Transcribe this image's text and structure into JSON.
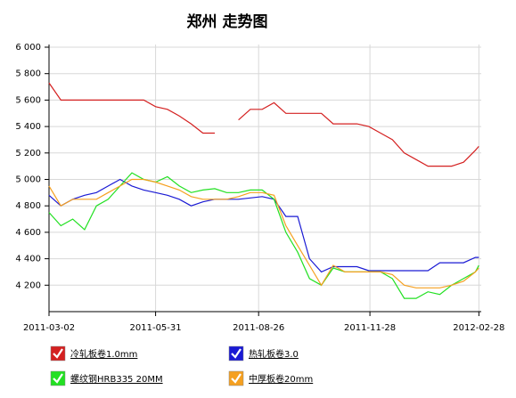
{
  "chart_data": {
    "type": "line",
    "title": "郑州 走势图",
    "x": [
      "2011-03-02",
      "2011-03-12",
      "2011-03-22",
      "2011-04-01",
      "2011-04-11",
      "2011-04-21",
      "2011-05-01",
      "2011-05-11",
      "2011-05-21",
      "2011-05-31",
      "2011-06-10",
      "2011-06-20",
      "2011-06-30",
      "2011-07-10",
      "2011-07-20",
      "2011-07-30",
      "2011-08-09",
      "2011-08-19",
      "2011-08-29",
      "2011-09-08",
      "2011-09-18",
      "2011-09-28",
      "2011-10-08",
      "2011-10-18",
      "2011-10-28",
      "2011-11-07",
      "2011-11-17",
      "2011-11-27",
      "2011-12-07",
      "2011-12-17",
      "2011-12-27",
      "2012-01-06",
      "2012-01-16",
      "2012-01-26",
      "2012-02-05",
      "2012-02-15",
      "2012-02-25",
      "2012-02-28"
    ],
    "series": [
      {
        "name": "冷轧板卷1.0mm",
        "color": "#d42020",
        "values": [
          5730,
          5600,
          5600,
          5600,
          5600,
          5600,
          5600,
          5600,
          5600,
          5550,
          5530,
          5480,
          5420,
          5350,
          5350,
          null,
          5450,
          5530,
          5530,
          5580,
          5500,
          5500,
          5500,
          5500,
          5420,
          5420,
          5420,
          5400,
          5350,
          5300,
          5200,
          5150,
          5100,
          5100,
          5100,
          5130,
          5220,
          5250
        ]
      },
      {
        "name": "热轧板卷3.0",
        "color": "#1a1ad4",
        "values": [
          4880,
          4800,
          4850,
          4880,
          4900,
          4950,
          5000,
          4950,
          4920,
          4900,
          4880,
          4850,
          4800,
          4830,
          4850,
          4850,
          4850,
          4860,
          4870,
          4850,
          4720,
          4720,
          4400,
          4300,
          4340,
          4340,
          4340,
          4310,
          4310,
          4310,
          4310,
          4310,
          4310,
          4370,
          4370,
          4370,
          4410,
          4410
        ]
      },
      {
        "name": "螺纹钢HRB335 20MM",
        "color": "#22e022",
        "values": [
          4750,
          4650,
          4700,
          4620,
          4800,
          4850,
          4950,
          5050,
          5000,
          4980,
          5020,
          4950,
          4900,
          4920,
          4930,
          4900,
          4900,
          4920,
          4920,
          4850,
          4600,
          4450,
          4250,
          4200,
          4330,
          4300,
          4300,
          4300,
          4300,
          4250,
          4100,
          4100,
          4150,
          4130,
          4200,
          4250,
          4300,
          4350
        ]
      },
      {
        "name": "中厚板卷20mm",
        "color": "#f5a020",
        "values": [
          4950,
          4800,
          4850,
          4850,
          4850,
          4900,
          4950,
          5000,
          5000,
          4980,
          4950,
          4920,
          4870,
          4850,
          4850,
          4850,
          4870,
          4900,
          4900,
          4880,
          4650,
          4500,
          4350,
          4200,
          4350,
          4300,
          4300,
          4300,
          4300,
          4280,
          4200,
          4180,
          4180,
          4180,
          4200,
          4230,
          4300,
          4330
        ]
      }
    ],
    "xlim": [
      "2011-03-02",
      "2012-03-01"
    ],
    "xticks": [
      "2011-03-02",
      "2011-05-31",
      "2011-08-26",
      "2011-11-28",
      "2012-02-28"
    ],
    "ylim": [
      4000,
      6000
    ],
    "yticks": [
      {
        "value": 4200,
        "label": "4 200"
      },
      {
        "value": 4400,
        "label": "4 400"
      },
      {
        "value": 4600,
        "label": "4 600"
      },
      {
        "value": 4800,
        "label": "4 800"
      },
      {
        "value": 5000,
        "label": "5 000"
      },
      {
        "value": 5200,
        "label": "5 200"
      },
      {
        "value": 5400,
        "label": "5 400"
      },
      {
        "value": 5600,
        "label": "5 600"
      },
      {
        "value": 5800,
        "label": "5 800"
      },
      {
        "value": 6000,
        "label": "6 000"
      }
    ],
    "grid": true,
    "legend": "bottom"
  }
}
